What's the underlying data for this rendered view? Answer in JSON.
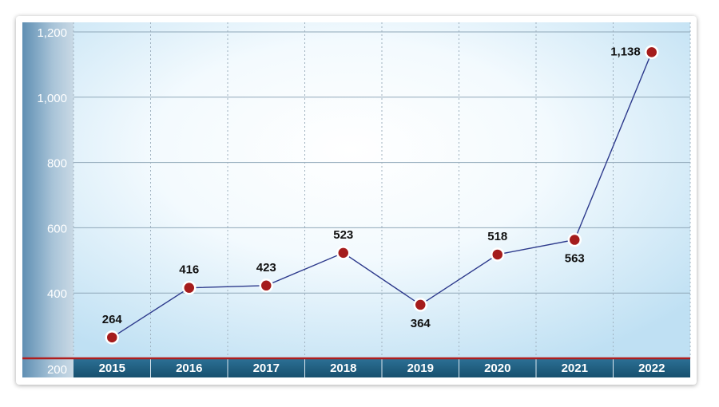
{
  "chart_data": {
    "type": "line",
    "title": "",
    "xlabel": "",
    "ylabel": "",
    "categories": [
      "2015",
      "2016",
      "2017",
      "2018",
      "2019",
      "2020",
      "2021",
      "2022"
    ],
    "values": [
      264,
      416,
      423,
      523,
      364,
      518,
      563,
      1138
    ],
    "data_labels": [
      "264",
      "416",
      "423",
      "523",
      "364",
      "518",
      "563",
      "1,138"
    ],
    "label_position": [
      "above",
      "above",
      "above",
      "above",
      "below",
      "above",
      "below",
      "left"
    ],
    "ylim": [
      200,
      1200
    ],
    "yticks": [
      200,
      400,
      600,
      800,
      1000,
      1200
    ],
    "ytick_labels": [
      "200",
      "400",
      "600",
      "800",
      "1,000",
      "1,200"
    ],
    "grid": true,
    "legend": "none",
    "colors": {
      "line": "#2d3a8c",
      "marker_fill": "#a51c1c",
      "marker_stroke": "#ffffff",
      "axis_band": "#1c5a7a",
      "baseline": "#b01e1e",
      "y_band": "#6e9bbd",
      "plot_light": "#ffffff",
      "plot_edge": "#bfe0f3"
    }
  }
}
